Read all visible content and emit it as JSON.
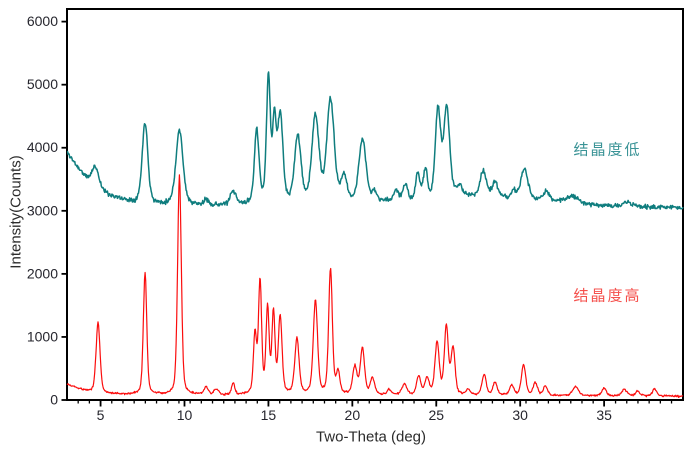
{
  "chart_data": {
    "type": "line",
    "title": "",
    "xlabel": "Two-Theta (deg)",
    "ylabel": "Intensity(Counts)",
    "xlim": [
      3.0,
      39.7
    ],
    "ylim": [
      0,
      6200
    ],
    "x_ticks": [
      5,
      10,
      15,
      20,
      25,
      30,
      35
    ],
    "x_minor_step": 0.667,
    "y_ticks": [
      0,
      1000,
      2000,
      3000,
      4000,
      5000,
      6000
    ],
    "grid": false,
    "frame_color": "#000000",
    "tick_color": "#000000",
    "tick_label_color": "#26262e",
    "axis_label_color": "#2b2b2b",
    "series": [
      {
        "name": "结晶度低",
        "color": "#0f7d7e",
        "line_width": 1.5,
        "noise": 30,
        "seed": 11,
        "baseline_points": [
          [
            3.0,
            3930
          ],
          [
            3.6,
            3700
          ],
          [
            4.2,
            3500
          ],
          [
            4.9,
            3330
          ],
          [
            5.5,
            3250
          ],
          [
            6.2,
            3185
          ],
          [
            7.0,
            3135
          ],
          [
            8.0,
            3105
          ],
          [
            11.0,
            3080
          ],
          [
            13.5,
            3090
          ],
          [
            19.0,
            3105
          ],
          [
            21.5,
            3140
          ],
          [
            23.5,
            3130
          ],
          [
            25.0,
            3140
          ],
          [
            26.2,
            3230
          ],
          [
            27.6,
            3215
          ],
          [
            29.5,
            3185
          ],
          [
            31.0,
            3160
          ],
          [
            33.0,
            3130
          ],
          [
            34.5,
            3090
          ],
          [
            36.0,
            3070
          ],
          [
            39.7,
            3050
          ]
        ],
        "peaks_theta_intensity_fwhm": [
          [
            4.7,
            3700,
            0.5
          ],
          [
            7.65,
            4400,
            0.4
          ],
          [
            9.7,
            4270,
            0.5
          ],
          [
            11.3,
            3160,
            0.35
          ],
          [
            12.9,
            3290,
            0.4
          ],
          [
            14.3,
            4250,
            0.33
          ],
          [
            15.0,
            5070,
            0.28
          ],
          [
            15.35,
            4300,
            0.25
          ],
          [
            15.7,
            4480,
            0.38
          ],
          [
            16.75,
            4160,
            0.45
          ],
          [
            17.8,
            4470,
            0.5
          ],
          [
            18.7,
            4730,
            0.52
          ],
          [
            19.5,
            3520,
            0.4
          ],
          [
            20.6,
            4120,
            0.5
          ],
          [
            21.3,
            3270,
            0.35
          ],
          [
            22.6,
            3310,
            0.35
          ],
          [
            23.15,
            3400,
            0.35
          ],
          [
            23.9,
            3560,
            0.3
          ],
          [
            24.35,
            3640,
            0.3
          ],
          [
            25.1,
            4570,
            0.38
          ],
          [
            25.62,
            4600,
            0.42
          ],
          [
            26.4,
            3380,
            0.35
          ],
          [
            27.8,
            3620,
            0.45
          ],
          [
            28.5,
            3440,
            0.4
          ],
          [
            29.6,
            3300,
            0.35
          ],
          [
            30.25,
            3660,
            0.5
          ],
          [
            31.55,
            3300,
            0.45
          ],
          [
            33.1,
            3230,
            0.9
          ],
          [
            36.4,
            3140,
            0.5
          ]
        ]
      },
      {
        "name": "结晶度高",
        "color": "#fb0d0d",
        "line_width": 1.2,
        "noise": 13,
        "seed": 5,
        "baseline_points": [
          [
            3.0,
            250
          ],
          [
            3.8,
            170
          ],
          [
            4.5,
            125
          ],
          [
            5.3,
            100
          ],
          [
            6.5,
            90
          ],
          [
            9.0,
            82
          ],
          [
            13.0,
            80
          ],
          [
            14.5,
            95
          ],
          [
            19.0,
            88
          ],
          [
            22.0,
            80
          ],
          [
            26.0,
            78
          ],
          [
            30.0,
            72
          ],
          [
            34.0,
            68
          ],
          [
            39.7,
            62
          ]
        ],
        "peaks_theta_intensity_fwhm": [
          [
            4.85,
            1230,
            0.28
          ],
          [
            7.65,
            2010,
            0.24
          ],
          [
            9.7,
            3560,
            0.26
          ],
          [
            11.3,
            200,
            0.3
          ],
          [
            11.9,
            165,
            0.3
          ],
          [
            12.9,
            265,
            0.22
          ],
          [
            14.2,
            1030,
            0.22
          ],
          [
            14.5,
            1870,
            0.22
          ],
          [
            14.95,
            1430,
            0.22
          ],
          [
            15.3,
            1350,
            0.22
          ],
          [
            15.7,
            1300,
            0.26
          ],
          [
            16.7,
            960,
            0.3
          ],
          [
            17.8,
            1560,
            0.3
          ],
          [
            18.7,
            2060,
            0.26
          ],
          [
            19.15,
            430,
            0.25
          ],
          [
            20.15,
            520,
            0.3
          ],
          [
            20.6,
            810,
            0.3
          ],
          [
            21.2,
            340,
            0.3
          ],
          [
            22.2,
            160,
            0.3
          ],
          [
            23.1,
            240,
            0.35
          ],
          [
            23.95,
            370,
            0.3
          ],
          [
            24.45,
            335,
            0.3
          ],
          [
            25.05,
            900,
            0.3
          ],
          [
            25.6,
            1150,
            0.28
          ],
          [
            26.0,
            810,
            0.28
          ],
          [
            26.9,
            160,
            0.3
          ],
          [
            27.85,
            400,
            0.3
          ],
          [
            28.5,
            270,
            0.3
          ],
          [
            29.5,
            230,
            0.3
          ],
          [
            30.2,
            555,
            0.3
          ],
          [
            30.9,
            270,
            0.3
          ],
          [
            31.5,
            215,
            0.3
          ],
          [
            33.3,
            210,
            0.4
          ],
          [
            35.0,
            185,
            0.3
          ],
          [
            36.2,
            170,
            0.35
          ],
          [
            37.0,
            140,
            0.3
          ],
          [
            38.0,
            170,
            0.3
          ]
        ]
      }
    ],
    "annotations": [
      {
        "text": "结晶度低",
        "x": 35.2,
        "y": 3980,
        "color": "#3a9396"
      },
      {
        "text": "结晶度高",
        "x": 35.2,
        "y": 1665,
        "color": "#f5514d"
      }
    ]
  }
}
